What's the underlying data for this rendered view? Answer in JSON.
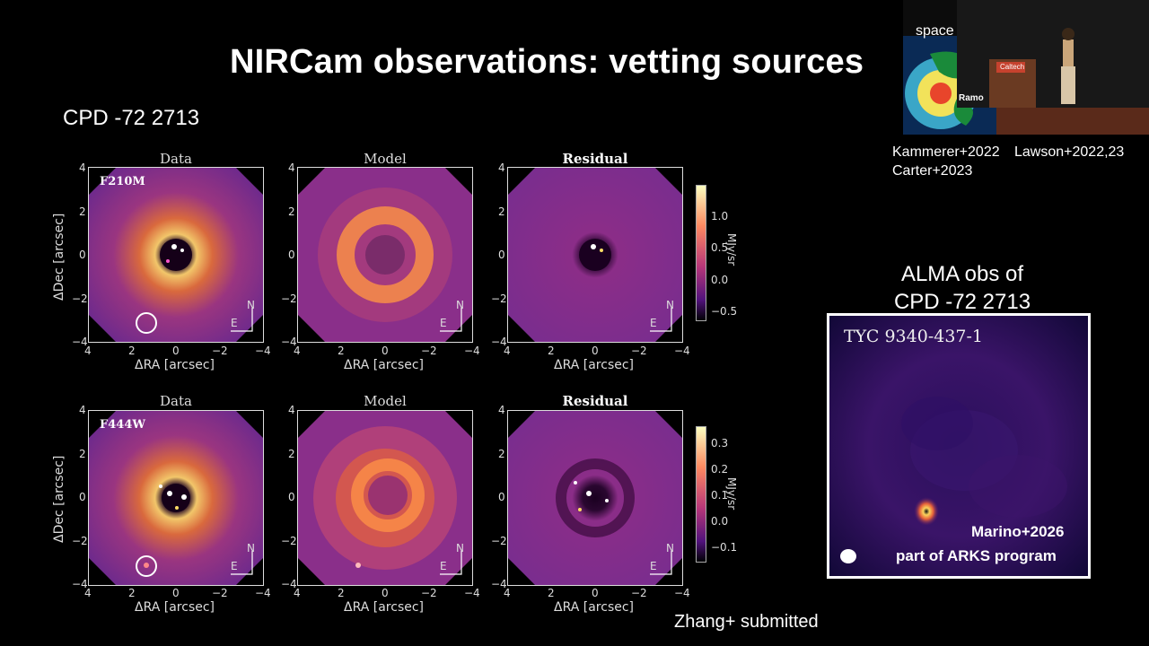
{
  "slide": {
    "title": "NIRCam observations: vetting sources",
    "target": "CPD -72 2713",
    "footer": "Zhang+ submitted"
  },
  "rows": [
    {
      "filter": "F210M",
      "panels": [
        "Data",
        "Model",
        "Residual"
      ],
      "colorbar_ticks": [
        "1.0",
        "0.5",
        "0.0",
        "−0.5"
      ],
      "colorbar_unit": "MJy/sr"
    },
    {
      "filter": "F444W",
      "panels": [
        "Data",
        "Model",
        "Residual"
      ],
      "colorbar_ticks": [
        "0.3",
        "0.2",
        "0.1",
        "0.0",
        "−0.1"
      ],
      "colorbar_unit": "MJy/sr"
    }
  ],
  "axes": {
    "xlabel": "ΔRA [arcsec]",
    "ylabel": "ΔDec [arcsec]",
    "xticks": [
      "4",
      "2",
      "0",
      "−2",
      "−4"
    ],
    "yticks": [
      "4",
      "2",
      "0",
      "−2",
      "−4"
    ],
    "compass_n": "N",
    "compass_e": "E"
  },
  "video": {
    "inset_label_top": "space",
    "inset_label": "Ramo",
    "podium": "Caltech"
  },
  "refs": {
    "left": [
      "Kammerer+2022",
      "Carter+2023"
    ],
    "right": "Lawson+2022,23"
  },
  "alma": {
    "title_line1": "ALMA obs of",
    "title_line2": "CPD -72 2713",
    "image_label": "TYC 9340-437-1",
    "credit_line1": "Marino+2026",
    "credit_line2": "part of ARKS program"
  }
}
